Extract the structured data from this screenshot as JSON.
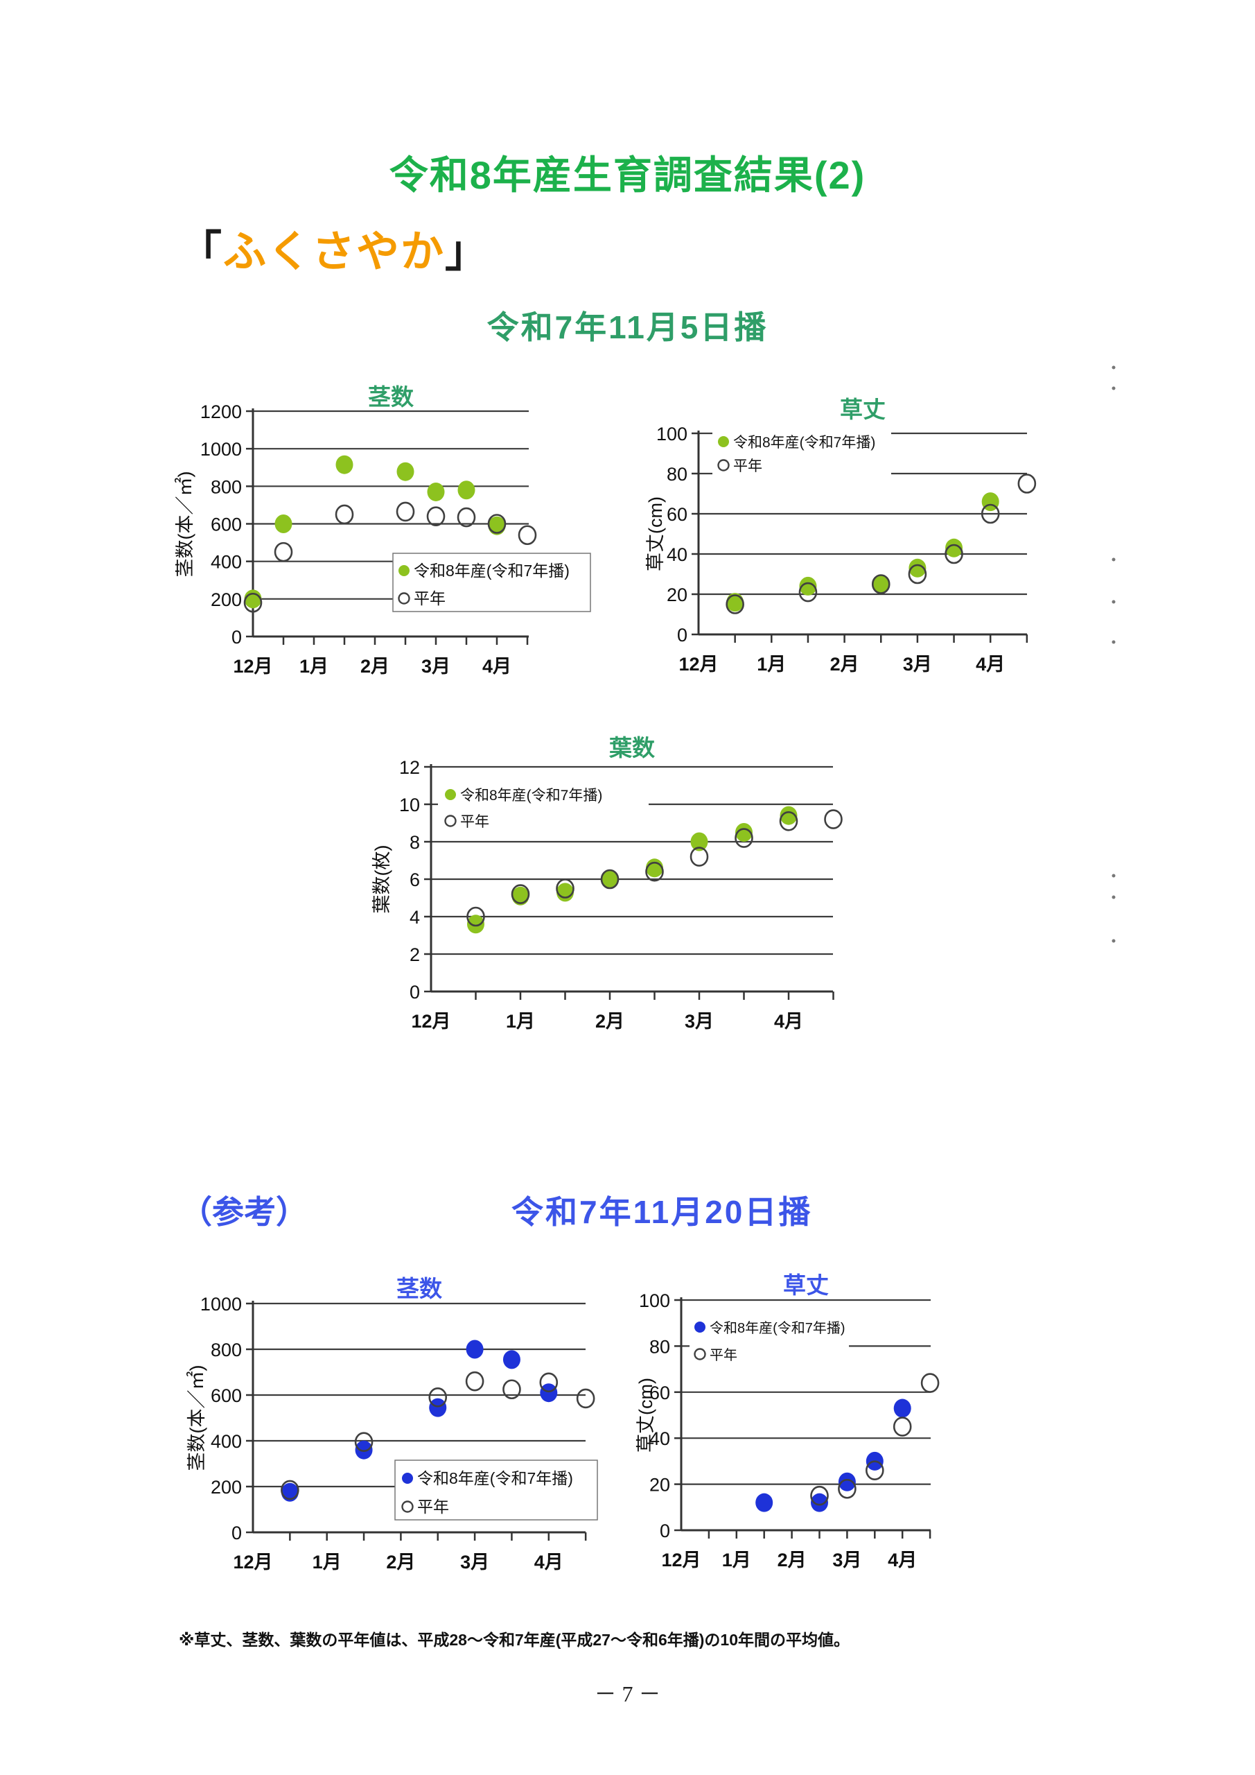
{
  "page": {
    "title": "令和8年産生育調査結果(2)",
    "variety_bracket_open": "「",
    "variety_name": "ふくさやか",
    "variety_bracket_close": "」",
    "sowing_title_1": "令和7年11月5日播",
    "reference_label": "（参考）",
    "sowing_title_2": "令和7年11月20日播",
    "footnote": "※草丈、茎数、葉数の平年値は、平成28～令和7年産(平成27～令和6年播)の10年間の平均値。",
    "page_number": "－ 7 －"
  },
  "colors": {
    "main_title_green": "#1cb14b",
    "teal_heading": "#2f9e68",
    "orange_variety": "#f59b00",
    "blue_heading": "#3c55e8",
    "series_green": "#8dc21f",
    "series_blue": "#1e32d8",
    "open_marker_stroke": "#404040",
    "grid": "#3c3c3c",
    "axis": "#333333"
  },
  "legend": {
    "current_label": "令和8年産(令和7年播)",
    "normal_label": "平年"
  },
  "chart_data": [
    {
      "type": "scatter",
      "title": "茎数",
      "group": "令和7年11月5日播",
      "title_color": "#2f9e68",
      "ylabel": "茎数(本／㎡)",
      "ylim": [
        0,
        1200
      ],
      "ytick_step": 200,
      "xticklabels": [
        "12月",
        "1月",
        "2月",
        "3月",
        "4月"
      ],
      "x_unit": "months_from_december",
      "grid": true,
      "legend_position": "middle-right",
      "series": [
        {
          "name": "令和8年産(令和7年播)",
          "marker": "filled",
          "color": "#8dc21f",
          "points": [
            [
              0,
              200
            ],
            [
              0.5,
              600
            ],
            [
              1.5,
              915
            ],
            [
              2.5,
              878
            ],
            [
              3,
              770
            ],
            [
              3.5,
              780
            ],
            [
              4,
              590
            ]
          ]
        },
        {
          "name": "平年",
          "marker": "open",
          "points": [
            [
              0,
              180
            ],
            [
              0.5,
              450
            ],
            [
              1.5,
              650
            ],
            [
              2.5,
              665
            ],
            [
              3,
              640
            ],
            [
              3.5,
              635
            ],
            [
              4,
              600
            ],
            [
              4.5,
              540
            ]
          ]
        }
      ]
    },
    {
      "type": "scatter",
      "title": "草丈",
      "group": "令和7年11月5日播",
      "title_color": "#2f9e68",
      "ylabel": "草丈(cm)",
      "ylim": [
        0,
        100
      ],
      "ytick_step": 20,
      "xticklabels": [
        "12月",
        "1月",
        "2月",
        "3月",
        "4月"
      ],
      "x_unit": "months_from_december",
      "grid": true,
      "legend_position": "top-left",
      "series": [
        {
          "name": "令和8年産(令和7年播)",
          "marker": "filled",
          "color": "#8dc21f",
          "points": [
            [
              0.5,
              16
            ],
            [
              1.5,
              24
            ],
            [
              2.5,
              25
            ],
            [
              3,
              33
            ],
            [
              3.5,
              43
            ],
            [
              4,
              66
            ]
          ]
        },
        {
          "name": "平年",
          "marker": "open",
          "points": [
            [
              0.5,
              15
            ],
            [
              1.5,
              21
            ],
            [
              2.5,
              25
            ],
            [
              3,
              30
            ],
            [
              3.5,
              40
            ],
            [
              4,
              60
            ],
            [
              4.5,
              75
            ]
          ]
        }
      ]
    },
    {
      "type": "scatter",
      "title": "葉数",
      "group": "令和7年11月5日播",
      "title_color": "#2f9e68",
      "ylabel": "葉数(枚)",
      "ylim": [
        0,
        12
      ],
      "ytick_step": 2,
      "xticklabels": [
        "12月",
        "1月",
        "2月",
        "3月",
        "4月"
      ],
      "x_unit": "months_from_december",
      "grid": true,
      "legend_position": "top-left",
      "series": [
        {
          "name": "令和8年産(令和7年播)",
          "marker": "filled",
          "color": "#8dc21f",
          "points": [
            [
              0.5,
              3.6
            ],
            [
              1,
              5.1
            ],
            [
              1.5,
              5.3
            ],
            [
              2,
              6.0
            ],
            [
              2.5,
              6.6
            ],
            [
              3,
              8.0
            ],
            [
              3.5,
              8.5
            ],
            [
              4,
              9.4
            ]
          ]
        },
        {
          "name": "平年",
          "marker": "open",
          "points": [
            [
              0.5,
              4.0
            ],
            [
              1,
              5.2
            ],
            [
              1.5,
              5.5
            ],
            [
              2,
              6.0
            ],
            [
              2.5,
              6.4
            ],
            [
              3,
              7.2
            ],
            [
              3.5,
              8.2
            ],
            [
              4,
              9.1
            ],
            [
              4.5,
              9.2
            ]
          ]
        }
      ]
    },
    {
      "type": "scatter",
      "title": "茎数",
      "group": "令和7年11月20日播",
      "title_color": "#3c55e8",
      "ylabel": "茎数(本／㎡)",
      "ylim": [
        0,
        1000
      ],
      "ytick_step": 200,
      "xticklabels": [
        "12月",
        "1月",
        "2月",
        "3月",
        "4月"
      ],
      "x_unit": "months_from_december",
      "grid": true,
      "legend_position": "middle-right",
      "series": [
        {
          "name": "令和8年産(令和7年播)",
          "marker": "filled",
          "color": "#1e32d8",
          "points": [
            [
              0.5,
              175
            ],
            [
              1.5,
              360
            ],
            [
              2.5,
              545
            ],
            [
              3,
              800
            ],
            [
              3.5,
              755
            ],
            [
              4,
              610
            ]
          ]
        },
        {
          "name": "平年",
          "marker": "open",
          "points": [
            [
              0.5,
              185
            ],
            [
              1.5,
              395
            ],
            [
              2.5,
              590
            ],
            [
              3,
              660
            ],
            [
              3.5,
              625
            ],
            [
              4,
              655
            ],
            [
              4.5,
              585
            ]
          ]
        }
      ]
    },
    {
      "type": "scatter",
      "title": "草丈",
      "group": "令和7年11月20日播",
      "title_color": "#3c55e8",
      "ylabel": "草丈(cm)",
      "ylim": [
        0,
        100
      ],
      "ytick_step": 20,
      "xticklabels": [
        "12月",
        "1月",
        "2月",
        "3月",
        "4月"
      ],
      "x_unit": "months_from_december",
      "grid": true,
      "legend_position": "top-left",
      "series": [
        {
          "name": "令和8年産(令和7年播)",
          "marker": "filled",
          "color": "#1e32d8",
          "points": [
            [
              1.5,
              12
            ],
            [
              2.5,
              12
            ],
            [
              3,
              21
            ],
            [
              3.5,
              30
            ],
            [
              4,
              53
            ]
          ]
        },
        {
          "name": "平年",
          "marker": "open",
          "points": [
            [
              2.5,
              15
            ],
            [
              3,
              18
            ],
            [
              3.5,
              26
            ],
            [
              4,
              45
            ],
            [
              4.5,
              64
            ]
          ]
        }
      ]
    }
  ],
  "stray_marks": [
    [
      1607,
      530
    ],
    [
      1607,
      560
    ],
    [
      1607,
      807
    ],
    [
      1607,
      868
    ],
    [
      1607,
      926
    ],
    [
      1607,
      1263
    ],
    [
      1607,
      1294
    ],
    [
      1607,
      1357
    ]
  ]
}
